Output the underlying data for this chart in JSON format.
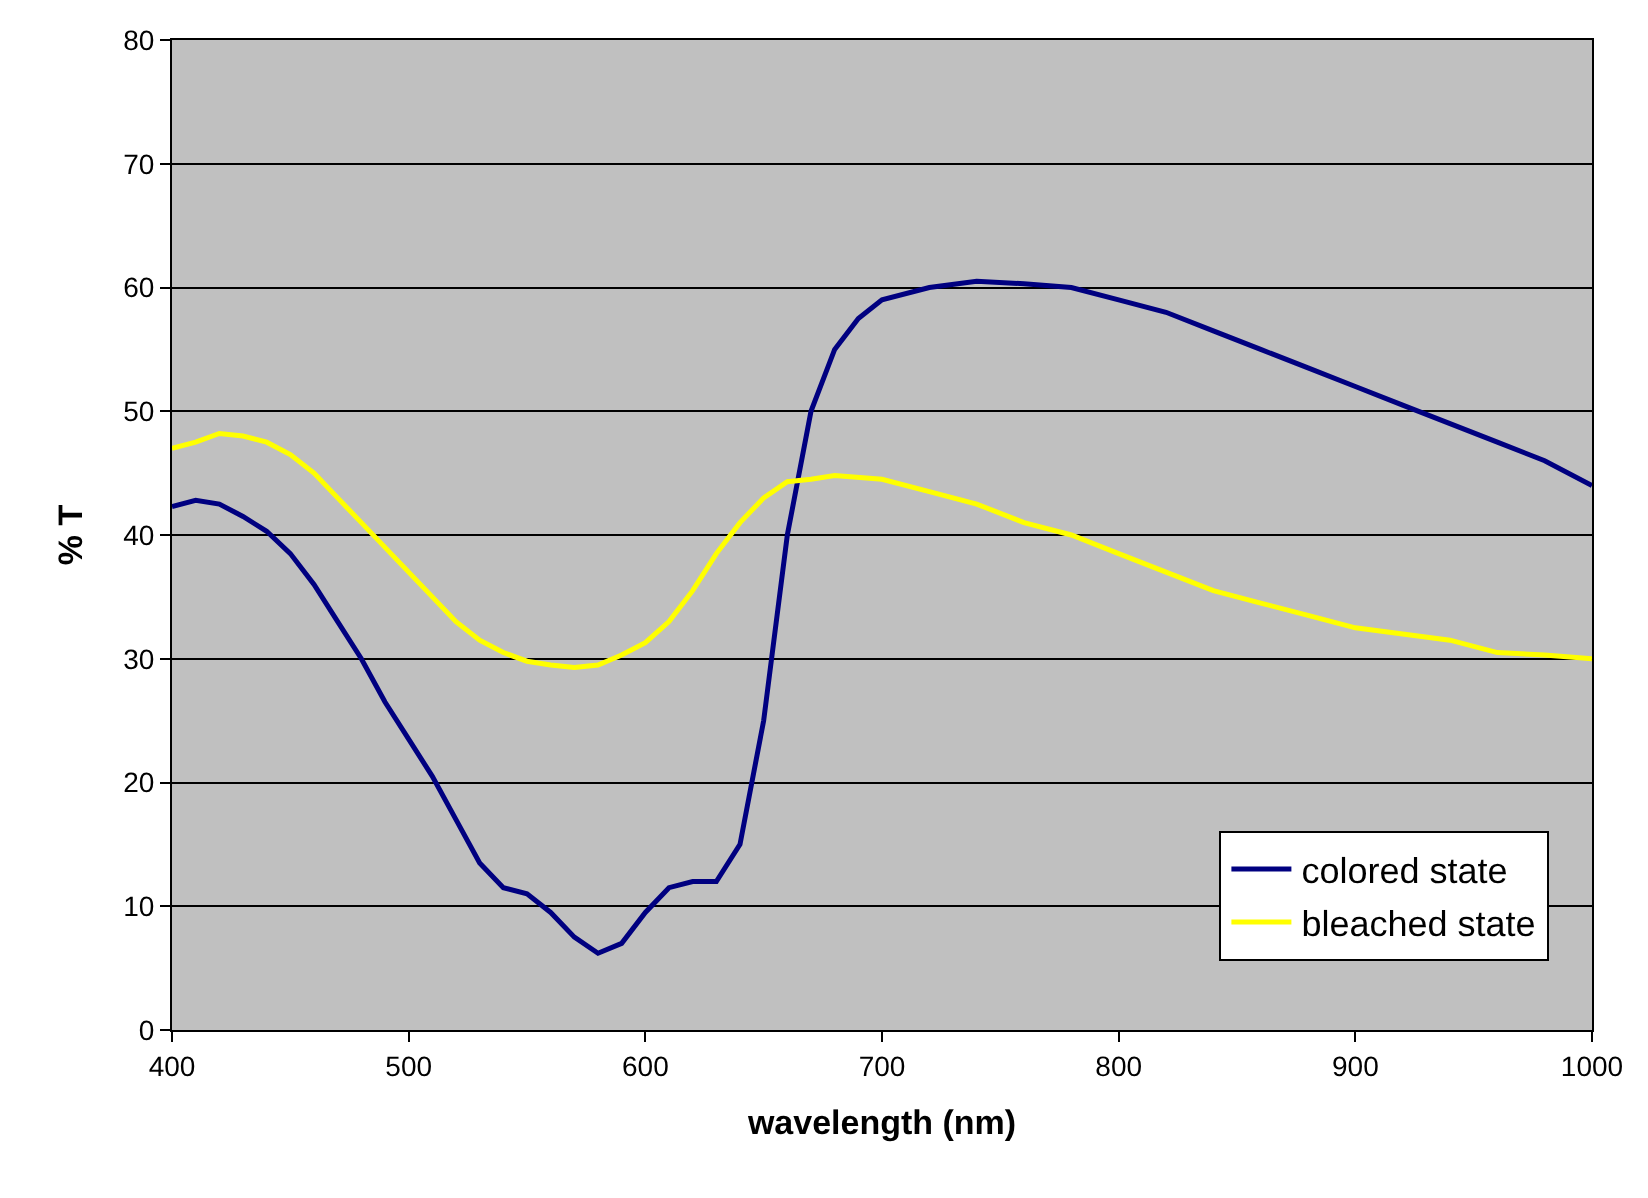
{
  "chart_data": {
    "type": "line",
    "xlabel": "wavelength (nm)",
    "ylabel": "% T",
    "xlim": [
      400,
      1000
    ],
    "xticks": [
      400,
      500,
      600,
      700,
      800,
      900,
      1000
    ],
    "ylim": [
      0,
      80
    ],
    "yticks": [
      0,
      10,
      20,
      30,
      40,
      50,
      60,
      70,
      80
    ],
    "grid": "y",
    "legend": "bottom right",
    "marker": "none",
    "line_style": "solid",
    "series": [
      {
        "name": "colored state",
        "color": "#000080",
        "x": [
          400,
          410,
          420,
          430,
          440,
          450,
          460,
          470,
          480,
          490,
          500,
          510,
          520,
          530,
          540,
          550,
          560,
          570,
          580,
          590,
          600,
          610,
          620,
          630,
          640,
          650,
          660,
          670,
          680,
          690,
          700,
          720,
          740,
          760,
          780,
          800,
          820,
          840,
          860,
          880,
          900,
          920,
          940,
          960,
          980,
          1000
        ],
        "values": [
          42.3,
          42.8,
          42.5,
          41.5,
          40.3,
          38.5,
          36,
          33,
          30,
          26.5,
          23.5,
          20.5,
          17,
          13.5,
          11.5,
          11,
          9.5,
          7.5,
          6.2,
          7,
          9.5,
          11.5,
          12,
          12,
          15,
          25,
          40,
          50,
          55,
          57.5,
          59,
          60,
          60.5,
          60.3,
          60,
          59,
          58,
          56.5,
          55,
          53.5,
          52,
          50.5,
          49,
          47.5,
          46,
          44
        ]
      },
      {
        "name": "bleached state",
        "color": "#ffff00",
        "x": [
          400,
          410,
          420,
          430,
          440,
          450,
          460,
          470,
          480,
          490,
          500,
          510,
          520,
          530,
          540,
          550,
          560,
          570,
          580,
          590,
          600,
          610,
          620,
          630,
          640,
          650,
          660,
          670,
          680,
          700,
          720,
          740,
          760,
          780,
          800,
          820,
          840,
          860,
          880,
          900,
          920,
          940,
          960,
          980,
          1000
        ],
        "values": [
          47,
          47.5,
          48.2,
          48,
          47.5,
          46.5,
          45,
          43,
          41,
          39,
          37,
          35,
          33,
          31.5,
          30.5,
          29.8,
          29.5,
          29.3,
          29.5,
          30.3,
          31.3,
          33,
          35.5,
          38.5,
          41,
          43,
          44.3,
          44.5,
          44.8,
          44.5,
          43.5,
          42.5,
          41,
          40,
          38.5,
          37,
          35.5,
          34.5,
          33.5,
          32.5,
          32,
          31.5,
          30.5,
          30.3,
          30
        ]
      }
    ]
  }
}
